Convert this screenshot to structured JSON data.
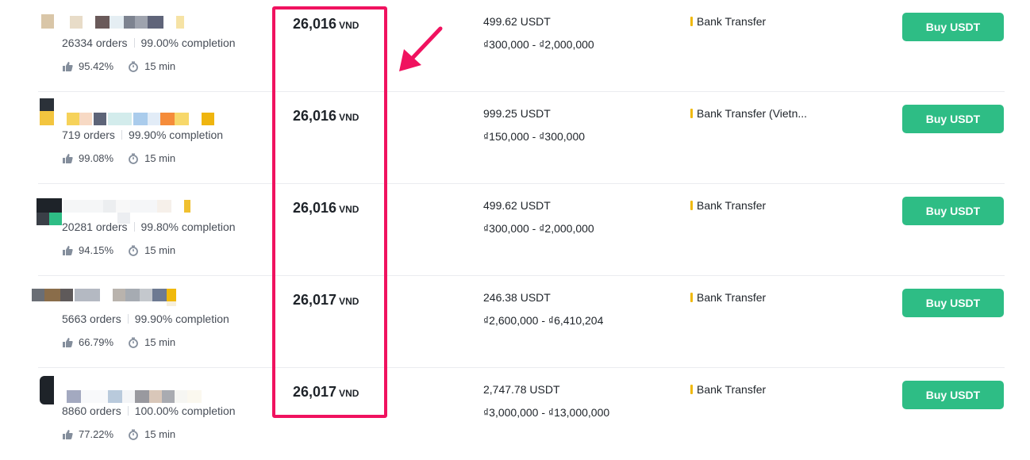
{
  "colors": {
    "accent_buy": "#2ebd85",
    "payment_marker": "#f0b90b",
    "annotation": "#f0125f",
    "divider": "#eaecef"
  },
  "icons": {
    "rating": "thumbs-up-icon",
    "time": "stopwatch-icon"
  },
  "ads": [
    {
      "orders": "26334 orders",
      "completion": "99.00% completion",
      "rating": "95.42%",
      "time": "15 min",
      "price": "26,016",
      "currency": "VND",
      "available": "499.62 USDT",
      "limit": "₫300,000 - ₫2,000,000",
      "payment": "Bank Transfer",
      "button": "Buy USDT"
    },
    {
      "orders": "719 orders",
      "completion": "99.90% completion",
      "rating": "99.08%",
      "time": "15 min",
      "price": "26,016",
      "currency": "VND",
      "available": "999.25 USDT",
      "limit": "₫150,000 - ₫300,000",
      "payment": "Bank Transfer (Vietn...",
      "button": "Buy USDT"
    },
    {
      "orders": "20281 orders",
      "completion": "99.80% completion",
      "rating": "94.15%",
      "time": "15 min",
      "price": "26,016",
      "currency": "VND",
      "available": "499.62 USDT",
      "limit": "₫300,000 - ₫2,000,000",
      "payment": "Bank Transfer",
      "button": "Buy USDT"
    },
    {
      "orders": "5663 orders",
      "completion": "99.90% completion",
      "rating": "66.79%",
      "time": "15 min",
      "price": "26,017",
      "currency": "VND",
      "available": "246.38 USDT",
      "limit": "₫2,600,000 - ₫6,410,204",
      "payment": "Bank Transfer",
      "button": "Buy USDT"
    },
    {
      "orders": "8860 orders",
      "completion": "100.00% completion",
      "rating": "77.22%",
      "time": "15 min",
      "price": "26,017",
      "currency": "VND",
      "available": "2,747.78 USDT",
      "limit": "₫3,000,000 - ₫13,000,000",
      "payment": "Bank Transfer",
      "button": "Buy USDT"
    }
  ]
}
